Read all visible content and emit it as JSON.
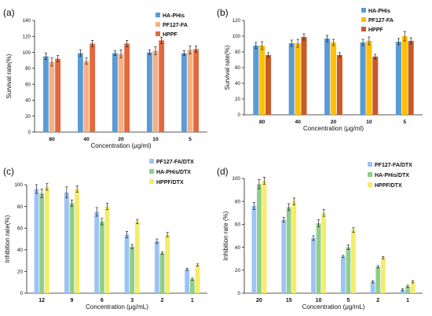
{
  "chart_data": [
    {
      "panel": "(a)",
      "type": "bar",
      "xlabel": "Concentration  (μg/ml)",
      "ylabel": "Survival rate(%)",
      "ylim": [
        0,
        140
      ],
      "yticks": [
        0,
        20,
        40,
        60,
        80,
        100,
        120,
        140
      ],
      "categories": [
        "80",
        "40",
        "20",
        "10",
        "5"
      ],
      "legend_position": "top-right",
      "grid": false,
      "series": [
        {
          "name": "HA-PHis",
          "color": "#5b9bd5",
          "values": [
            95,
            99,
            99,
            100,
            99
          ],
          "errors": [
            4,
            4,
            3,
            3,
            3
          ]
        },
        {
          "name": "PF127-FA",
          "color": "#f4b183",
          "values": [
            88,
            89,
            98,
            102,
            103
          ],
          "errors": [
            5,
            4,
            5,
            5,
            5
          ]
        },
        {
          "name": "HPPF",
          "color": "#e2693f",
          "values": [
            92,
            111,
            111,
            115,
            104
          ],
          "errors": [
            4,
            4,
            4,
            4,
            4
          ]
        }
      ]
    },
    {
      "panel": "(b)",
      "type": "bar",
      "xlabel": "Concentration  (μg/ml)",
      "ylabel": "Survival rate(%)",
      "ylim": [
        0,
        120
      ],
      "yticks": [
        0,
        20,
        40,
        60,
        80,
        100,
        120
      ],
      "categories": [
        "80",
        "40",
        "20",
        "10",
        "5"
      ],
      "legend_position": "top-right",
      "grid": false,
      "series": [
        {
          "name": "HA-PHis",
          "color": "#5b9bd5",
          "values": [
            88,
            91,
            97,
            92,
            93
          ],
          "errors": [
            4,
            4,
            4,
            4,
            4
          ]
        },
        {
          "name": "PF127-FA",
          "color": "#ffc000",
          "values": [
            88,
            91,
            92,
            94,
            100
          ],
          "errors": [
            5,
            5,
            4,
            5,
            6
          ]
        },
        {
          "name": "HPPF",
          "color": "#c65b2a",
          "values": [
            76,
            99,
            76,
            74,
            94
          ],
          "errors": [
            3,
            4,
            3,
            3,
            4
          ]
        }
      ]
    },
    {
      "panel": "(c)",
      "type": "bar",
      "xlabel": "Concentration   (μg/mL)",
      "ylabel": "Inhibition rate(%)",
      "ylim": [
        0,
        100
      ],
      "yticks": [
        0,
        20,
        40,
        60,
        80,
        100
      ],
      "categories": [
        "12",
        "9",
        "6",
        "3",
        "2",
        "1"
      ],
      "legend_position": "top-right",
      "grid": false,
      "series": [
        {
          "name": "PF127-FA/DTX",
          "color": "#9dc3f5",
          "values": [
            96,
            93,
            75,
            54,
            48,
            22
          ],
          "errors": [
            4,
            5,
            4,
            3,
            2,
            1
          ]
        },
        {
          "name": "HA-PHis/DTX",
          "color": "#8fcf8a",
          "values": [
            92,
            83,
            66,
            43,
            37,
            13
          ],
          "errors": [
            4,
            3,
            3,
            2,
            1,
            1
          ]
        },
        {
          "name": "HPPF/DTX",
          "color": "#f4ec6a",
          "values": [
            98,
            96,
            80,
            66,
            54,
            26
          ],
          "errors": [
            3,
            3,
            3,
            2,
            2,
            1
          ]
        }
      ]
    },
    {
      "panel": "(d)",
      "type": "bar",
      "xlabel": "Concentration   (μg/mL)",
      "ylabel": "Inhibition rate  (%)",
      "ylim": [
        0,
        100
      ],
      "yticks": [
        0,
        20,
        40,
        60,
        80,
        100
      ],
      "categories": [
        "20",
        "15",
        "10",
        "5",
        "2",
        "1"
      ],
      "legend_position": "top-right",
      "grid": false,
      "series": [
        {
          "name": "PF127-FA/DTX",
          "color": "#9dc3f5",
          "values": [
            76,
            64,
            48,
            32,
            10,
            3
          ],
          "errors": [
            3,
            2,
            2,
            1,
            1,
            1
          ]
        },
        {
          "name": "HA-PHis/DTX",
          "color": "#8fcf8a",
          "values": [
            95,
            75,
            61,
            40,
            23,
            6
          ],
          "errors": [
            4,
            3,
            3,
            2,
            1,
            1
          ]
        },
        {
          "name": "HPPF/DTX",
          "color": "#f4ec6a",
          "values": [
            98,
            80,
            70,
            55,
            31,
            10
          ],
          "errors": [
            3,
            3,
            3,
            2,
            1,
            1
          ]
        }
      ]
    }
  ]
}
